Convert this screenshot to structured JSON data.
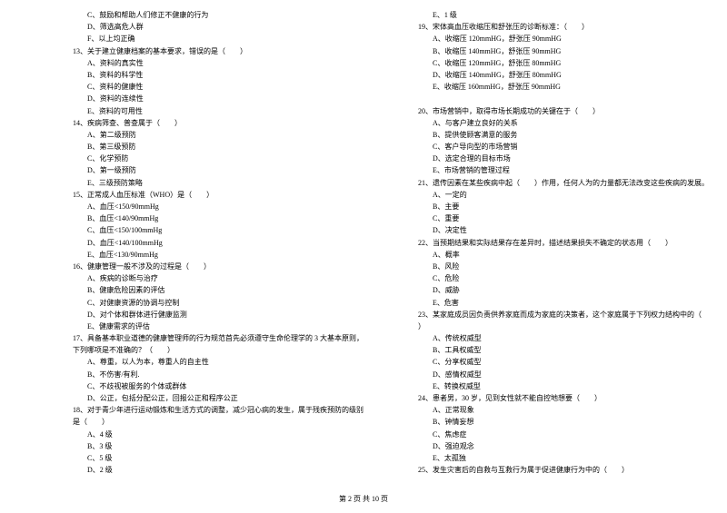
{
  "footer": "第 2 页 共 10 页",
  "leftColumn": [
    {
      "text": "C、鼓励和帮助人们修正不健康的行为",
      "indent": 1
    },
    {
      "text": "D、筛选高危人群",
      "indent": 1
    },
    {
      "text": "F、以上均正确",
      "indent": 1
    },
    {
      "text": "13、关于建立健康档案的基本要求，错误的是（　　）",
      "indent": 0
    },
    {
      "text": "A、资料的真实性",
      "indent": 1
    },
    {
      "text": "B、资料的科学性",
      "indent": 1
    },
    {
      "text": "C、资料的健康性",
      "indent": 1
    },
    {
      "text": "D、资料的连续性",
      "indent": 1
    },
    {
      "text": "E、资料的可用性",
      "indent": 1
    },
    {
      "text": "14、疾病筛查、普查属于（　　）",
      "indent": 0
    },
    {
      "text": "A、第二级预防",
      "indent": 1
    },
    {
      "text": "B、第三级预防",
      "indent": 1
    },
    {
      "text": "C、化学预防",
      "indent": 1
    },
    {
      "text": "D、第一级预防",
      "indent": 1
    },
    {
      "text": "E、三级预防策略",
      "indent": 1
    },
    {
      "text": "15、正常成人血压标准（WHO）是（　　）",
      "indent": 0
    },
    {
      "text": "A、血压<150/90mmHg",
      "indent": 1
    },
    {
      "text": "B、血压<140/90mmHg",
      "indent": 1
    },
    {
      "text": "C、血压<150/100mmHg",
      "indent": 1
    },
    {
      "text": "D、血压<140/100mmHg",
      "indent": 1
    },
    {
      "text": "E、血压<130/90mmHg",
      "indent": 1
    },
    {
      "text": "16、健康管理一般不涉及的过程是（　　）",
      "indent": 0
    },
    {
      "text": "A、疾病的诊断与治疗",
      "indent": 1
    },
    {
      "text": "B、健康危险因素的评估",
      "indent": 1
    },
    {
      "text": "C、对健康资源的协调与控制",
      "indent": 1
    },
    {
      "text": "D、对个体和群体进行健康监测",
      "indent": 1
    },
    {
      "text": "E、健康需求的评估",
      "indent": 1
    },
    {
      "text": "17、具备基本职业道德的健康管理师的行为规范首先必须遵守生命伦理学的 3 大基本原则，",
      "indent": 0
    },
    {
      "text": "下列哪项是不准确的？（　　）",
      "indent": 0
    },
    {
      "text": "A、尊重，以人为本，尊重人的自主性",
      "indent": 1
    },
    {
      "text": "B、不伤害/有利.",
      "indent": 1
    },
    {
      "text": "C、不歧视被服务的个体或群体",
      "indent": 1
    },
    {
      "text": "D、公正，包括分配公正，回报公正和程序公正",
      "indent": 1
    },
    {
      "text": "18、对于青少年进行运动锻炼和生活方式的调整，减少冠心病的发生，属于残疾预防的级别",
      "indent": 0
    },
    {
      "text": "是（　　）",
      "indent": 0
    },
    {
      "text": "A、4 级",
      "indent": 1
    },
    {
      "text": "B、3 级",
      "indent": 1
    },
    {
      "text": "C、5 级",
      "indent": 1
    },
    {
      "text": "D、2 级",
      "indent": 1
    }
  ],
  "rightColumn": [
    {
      "text": "E、1 级",
      "indent": 1
    },
    {
      "text": "19、宋体高血压收缩压和舒张压的诊断标准：（　　）",
      "indent": 0
    },
    {
      "text": "A、收缩压 120mmHG，舒张压 90mmHG",
      "indent": 1
    },
    {
      "text": "B、收缩压 140mmHG，舒张压 90mmHG",
      "indent": 1
    },
    {
      "text": "C、收缩压 120mmHG，舒张压 80mmHG",
      "indent": 1
    },
    {
      "text": "D、收缩压 140mmHG，舒张压 80mmHG",
      "indent": 1
    },
    {
      "text": "E、收缩压 160mmHG，舒张压 90mmHG",
      "indent": 1
    },
    {
      "text": "",
      "indent": 0
    },
    {
      "text": "20、市场营销中，取得市场长期成功的关键在于（　　）",
      "indent": 0
    },
    {
      "text": "A、与客户建立良好的关系",
      "indent": 1
    },
    {
      "text": "B、提供使顾客满意的服务",
      "indent": 1
    },
    {
      "text": "C、客户导向型的市场营销",
      "indent": 1
    },
    {
      "text": "D、选定合理的目标市场",
      "indent": 1
    },
    {
      "text": "E、市场营销的管理过程",
      "indent": 1
    },
    {
      "text": "21、遗传因素在某些疾病中起（　　）作用，任何人为的力量都无法改变这些疾病的发展。",
      "indent": 0
    },
    {
      "text": "A、一定的",
      "indent": 1
    },
    {
      "text": "B、主要",
      "indent": 1
    },
    {
      "text": "C、重要",
      "indent": 1
    },
    {
      "text": "D、决定性",
      "indent": 1
    },
    {
      "text": "22、当预期结果和实际结果存在差异时，描述结果损失不确定的状态用（　　）",
      "indent": 0
    },
    {
      "text": "A、概率",
      "indent": 1
    },
    {
      "text": "B、风险",
      "indent": 1
    },
    {
      "text": "C、危险",
      "indent": 1
    },
    {
      "text": "D、威胁",
      "indent": 1
    },
    {
      "text": "E、危害",
      "indent": 1
    },
    {
      "text": "23、某家庭成员因负责供养家庭而成为家庭的决策者，这个家庭属于下列权力结构中的（",
      "indent": 0
    },
    {
      "text": "）",
      "indent": 0
    },
    {
      "text": "A、传统权威型",
      "indent": 1
    },
    {
      "text": "B、工具权威型",
      "indent": 1
    },
    {
      "text": "C、分享权威型",
      "indent": 1
    },
    {
      "text": "D、感情权威型",
      "indent": 1
    },
    {
      "text": "E、转换权威型",
      "indent": 1
    },
    {
      "text": "24、患者男，30 岁，见到女性就不能自控地想要（　　）",
      "indent": 0
    },
    {
      "text": "A、正常现象",
      "indent": 1
    },
    {
      "text": "B、钟情妄想",
      "indent": 1
    },
    {
      "text": "C、焦虑症",
      "indent": 1
    },
    {
      "text": "D、强迫观念",
      "indent": 1
    },
    {
      "text": "E、太孤独",
      "indent": 1
    },
    {
      "text": "25、发生灾害后的自救与互救行为属于促进健康行为中的（　　）",
      "indent": 0
    }
  ]
}
